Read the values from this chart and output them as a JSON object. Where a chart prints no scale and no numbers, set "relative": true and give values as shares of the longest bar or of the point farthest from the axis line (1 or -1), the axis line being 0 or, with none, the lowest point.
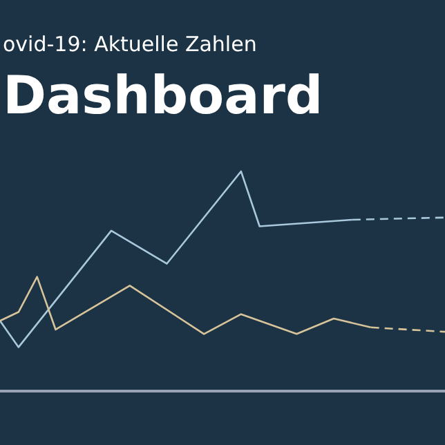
{
  "chart_data": {
    "type": "line",
    "subtitle": "ovid-19: Aktuelle Zahlen",
    "title": "Dashboard",
    "relative": true,
    "categories": [
      null,
      null,
      null,
      null,
      null,
      null,
      null,
      null,
      null,
      null,
      null,
      null,
      null,
      null,
      null,
      null,
      null,
      null,
      null,
      null,
      null,
      null,
      null,
      null,
      null
    ],
    "series": [
      {
        "color": "#a9c8dc",
        "line_style": "solid",
        "values": [
          0.32,
          0.2,
          null,
          null,
          null,
          null,
          0.73,
          null,
          null,
          0.58,
          null,
          null,
          null,
          1.0,
          0.75,
          null,
          null,
          null,
          null,
          0.78,
          null,
          null,
          null,
          null,
          null
        ]
      },
      {
        "color": "#a9c8dc",
        "line_style": "dashed",
        "values": [
          null,
          null,
          null,
          null,
          null,
          null,
          null,
          null,
          null,
          null,
          null,
          null,
          null,
          null,
          null,
          null,
          null,
          null,
          null,
          0.78,
          null,
          null,
          null,
          null,
          0.79
        ]
      },
      {
        "color": "#d8c49a",
        "line_style": "solid",
        "values": [
          0.32,
          0.36,
          0.52,
          0.28,
          null,
          null,
          null,
          0.48,
          null,
          null,
          null,
          0.26,
          null,
          0.35,
          null,
          null,
          0.26,
          null,
          0.33,
          null,
          0.29,
          null,
          null,
          null,
          null
        ]
      },
      {
        "color": "#d8c49a",
        "line_style": "dashed",
        "values": [
          null,
          null,
          null,
          null,
          null,
          null,
          null,
          null,
          null,
          null,
          null,
          null,
          null,
          null,
          null,
          null,
          null,
          null,
          null,
          null,
          0.29,
          null,
          null,
          null,
          0.27
        ]
      }
    ]
  }
}
